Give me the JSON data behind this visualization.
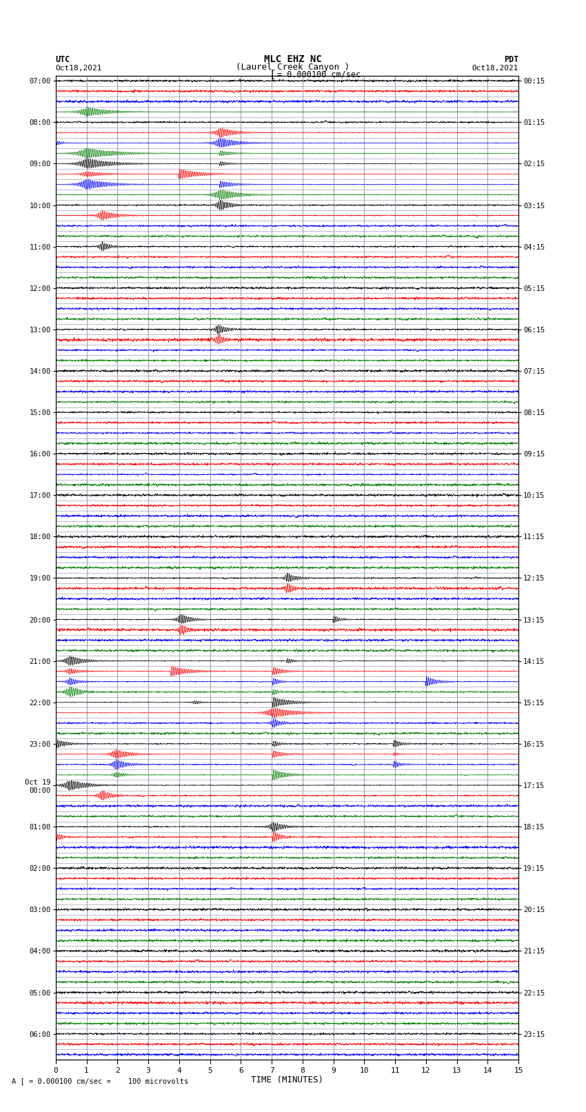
{
  "title_line1": "MLC EHZ NC",
  "title_line2": "(Laurel Creek Canyon )",
  "scale_label": "= 0.000100 cm/sec",
  "bottom_label": "A [ = 0.000100 cm/sec =    100 microvolts",
  "utc_label": "UTC",
  "pdt_label": "PDT",
  "date_left": "Oct18,2021",
  "date_right": "Oct18,2021",
  "xlabel": "TIME (MINUTES)",
  "xlim": [
    0,
    15
  ],
  "xticks": [
    0,
    1,
    2,
    3,
    4,
    5,
    6,
    7,
    8,
    9,
    10,
    11,
    12,
    13,
    14,
    15
  ],
  "left_labels": [
    "07:00",
    "",
    "",
    "",
    "08:00",
    "",
    "",
    "",
    "09:00",
    "",
    "",
    "",
    "10:00",
    "",
    "",
    "",
    "11:00",
    "",
    "",
    "",
    "12:00",
    "",
    "",
    "",
    "13:00",
    "",
    "",
    "",
    "14:00",
    "",
    "",
    "",
    "15:00",
    "",
    "",
    "",
    "16:00",
    "",
    "",
    "",
    "17:00",
    "",
    "",
    "",
    "18:00",
    "",
    "",
    "",
    "19:00",
    "",
    "",
    "",
    "20:00",
    "",
    "",
    "",
    "21:00",
    "",
    "",
    "",
    "22:00",
    "",
    "",
    "",
    "23:00",
    "",
    "",
    "",
    "Oct 19\n00:00",
    "",
    "",
    "",
    "01:00",
    "",
    "",
    "",
    "02:00",
    "",
    "",
    "",
    "03:00",
    "",
    "",
    "",
    "04:00",
    "",
    "",
    "",
    "05:00",
    "",
    "",
    "",
    "06:00",
    "",
    ""
  ],
  "right_labels": [
    "00:15",
    "",
    "",
    "",
    "01:15",
    "",
    "",
    "",
    "02:15",
    "",
    "",
    "",
    "03:15",
    "",
    "",
    "",
    "04:15",
    "",
    "",
    "",
    "05:15",
    "",
    "",
    "",
    "06:15",
    "",
    "",
    "",
    "07:15",
    "",
    "",
    "",
    "08:15",
    "",
    "",
    "",
    "09:15",
    "",
    "",
    "",
    "10:15",
    "",
    "",
    "",
    "11:15",
    "",
    "",
    "",
    "12:15",
    "",
    "",
    "",
    "13:15",
    "",
    "",
    "",
    "14:15",
    "",
    "",
    "",
    "15:15",
    "",
    "",
    "",
    "16:15",
    "",
    "",
    "",
    "17:15",
    "",
    "",
    "",
    "18:15",
    "",
    "",
    "",
    "19:15",
    "",
    "",
    "",
    "20:15",
    "",
    "",
    "",
    "21:15",
    "",
    "",
    "",
    "22:15",
    "",
    "",
    "",
    "23:15",
    "",
    ""
  ],
  "n_rows": 95,
  "row_colors_cycle": [
    "black",
    "red",
    "blue",
    "green"
  ],
  "bg_color": "white",
  "fig_width": 8.5,
  "fig_height": 16.13,
  "dpi": 100
}
